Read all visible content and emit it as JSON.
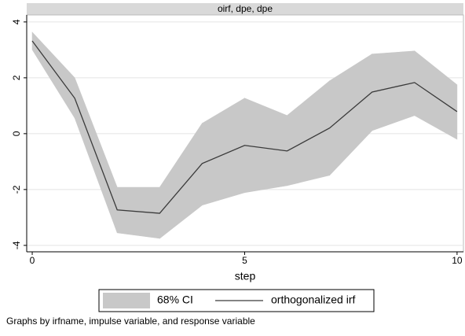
{
  "chart_data": {
    "type": "line",
    "title": "oirf, dpe, dpe",
    "x": [
      0,
      1,
      2,
      3,
      4,
      5,
      6,
      7,
      8,
      9,
      10
    ],
    "band": {
      "name": "68% CI",
      "color": "#c8c8c8",
      "upper": [
        3.63,
        2.0,
        -1.92,
        -1.92,
        0.37,
        1.27,
        0.65,
        1.89,
        2.85,
        2.96,
        1.75
      ],
      "lower": [
        3.01,
        0.56,
        -3.55,
        -3.75,
        -2.56,
        -2.11,
        -1.86,
        -1.49,
        0.11,
        0.65,
        -0.2
      ]
    },
    "series": [
      {
        "name": "orthogonalized irf",
        "color": "#3a3a3a",
        "values": [
          3.32,
          1.27,
          -2.73,
          -2.85,
          -1.07,
          -0.42,
          -0.62,
          0.2,
          1.49,
          1.83,
          0.79
        ]
      }
    ],
    "xlim": [
      -0.13,
      10.15
    ],
    "xticks": [
      0,
      5,
      10
    ],
    "xlabel": "step",
    "ylim": [
      -4.23,
      4.25
    ],
    "yticks": [
      -4,
      -2,
      0,
      2,
      4
    ],
    "grid": true,
    "legend": "bottom",
    "note": "Graphs by irfname, impulse variable, and response variable"
  }
}
